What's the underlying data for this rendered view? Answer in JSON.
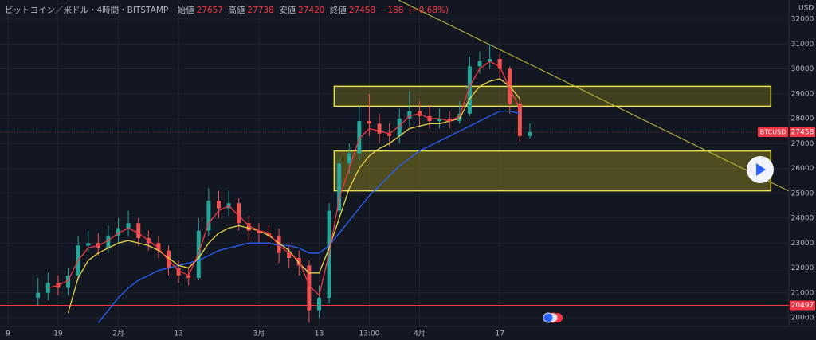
{
  "chart_data": {
    "type": "candlestick",
    "title": "ビットコイン／米ドル・4時間・BITSTAMP",
    "ohlc": {
      "open_label": "始値",
      "open": 27657,
      "high_label": "高値",
      "high": 27738,
      "low_label": "安値",
      "low": 27420,
      "close_label": "終値",
      "close": 27458,
      "change": {
        "value": -188,
        "label": "−188"
      },
      "change_pct": {
        "value": -0.68,
        "label": "(−0.68%)"
      }
    },
    "currency": "USD",
    "symbol": "BTCUSD",
    "last_price": 27458,
    "hline": 20497,
    "up_color": "#26a69a",
    "down_color": "#ef5350",
    "categories": [
      "9",
      null,
      null,
      null,
      null,
      "19",
      null,
      null,
      null,
      null,
      null,
      "2月",
      null,
      null,
      null,
      null,
      null,
      "13",
      null,
      null,
      null,
      null,
      null,
      null,
      null,
      "3月",
      null,
      null,
      null,
      null,
      null,
      "13",
      null,
      null,
      null,
      null,
      "13:00",
      null,
      null,
      null,
      null,
      "4月",
      null,
      null,
      null,
      null,
      null,
      null,
      null,
      "17",
      null,
      null,
      null
    ],
    "open": [
      null,
      null,
      null,
      20800,
      21000,
      21400,
      21200,
      21700,
      22900,
      23000,
      22800,
      23300,
      23600,
      23800,
      23200,
      23000,
      22700,
      22000,
      21700,
      21600,
      23500,
      24700,
      24400,
      24600,
      23800,
      23500,
      23400,
      23300,
      22600,
      22400,
      22100,
      20300,
      20800,
      24300,
      26200,
      26600,
      27900,
      27800,
      27400,
      27300,
      28000,
      28300,
      28100,
      27900,
      28000,
      27900,
      28200,
      30100,
      30300,
      30400,
      30000,
      28600,
      27300
    ],
    "high": [
      null,
      null,
      null,
      21600,
      21800,
      21700,
      22000,
      23300,
      23500,
      23400,
      23700,
      24000,
      24300,
      24000,
      23500,
      23300,
      22900,
      22300,
      22000,
      24000,
      25200,
      25100,
      25100,
      24800,
      24100,
      23800,
      23700,
      23600,
      22900,
      22700,
      22300,
      21300,
      24600,
      26500,
      27000,
      28500,
      29000,
      28200,
      27800,
      28400,
      29100,
      28700,
      28500,
      28400,
      28300,
      28700,
      30500,
      30700,
      31000,
      30600,
      30100,
      28800,
      27800
    ],
    "low": [
      null,
      null,
      null,
      20500,
      20700,
      20900,
      20900,
      21500,
      22600,
      22500,
      22600,
      23000,
      23300,
      22900,
      22700,
      22400,
      21700,
      21400,
      21300,
      21500,
      23300,
      24000,
      24100,
      23500,
      23100,
      23000,
      22900,
      22200,
      22000,
      21700,
      19800,
      20000,
      20600,
      24000,
      25800,
      26300,
      27300,
      27000,
      26900,
      27000,
      27700,
      27700,
      27600,
      27600,
      27600,
      27800,
      28100,
      29800,
      30000,
      29600,
      28200,
      27100,
      27200
    ],
    "close": [
      null,
      null,
      null,
      21000,
      21400,
      21200,
      21700,
      22900,
      23000,
      22800,
      23300,
      23600,
      23800,
      23200,
      23000,
      22700,
      22000,
      21700,
      21600,
      23500,
      24700,
      24400,
      24600,
      23800,
      23500,
      23400,
      23300,
      22600,
      22400,
      22100,
      20300,
      20800,
      24300,
      26200,
      26600,
      27900,
      27800,
      27400,
      27300,
      28000,
      28300,
      28100,
      27900,
      28000,
      27900,
      28200,
      30100,
      30300,
      30400,
      30000,
      28600,
      27300,
      27458
    ],
    "lines": [
      {
        "color": "#2962ff",
        "values": [
          null,
          null,
          null,
          null,
          null,
          null,
          null,
          null,
          null,
          19800,
          20300,
          20800,
          21200,
          21500,
          21700,
          21900,
          22000,
          22100,
          22200,
          22300,
          22500,
          22700,
          22800,
          22900,
          23000,
          23000,
          23000,
          22900,
          22900,
          22800,
          22600,
          22600,
          22900,
          23400,
          23900,
          24400,
          24900,
          25300,
          25700,
          26100,
          26400,
          26700,
          26900,
          27100,
          27300,
          27500,
          27700,
          27900,
          28100,
          28300,
          28300,
          28200,
          null
        ]
      },
      {
        "color": "#e8d44d",
        "values": [
          null,
          null,
          null,
          null,
          null,
          null,
          20200,
          21600,
          22300,
          22600,
          22800,
          23000,
          23100,
          23000,
          22900,
          22700,
          22400,
          22100,
          22000,
          22400,
          23000,
          23400,
          23600,
          23700,
          23600,
          23500,
          23300,
          23000,
          22700,
          22200,
          21800,
          21800,
          22800,
          24000,
          25200,
          26000,
          26500,
          26800,
          27000,
          27300,
          27600,
          27700,
          27800,
          27800,
          27900,
          28000,
          28800,
          29300,
          29500,
          29600,
          29300,
          28800,
          null
        ]
      },
      {
        "color": "#f23645",
        "values": [
          null,
          null,
          null,
          null,
          21200,
          21300,
          21500,
          22300,
          22800,
          22900,
          23100,
          23400,
          23600,
          23400,
          23100,
          22800,
          22300,
          21900,
          21700,
          22600,
          23800,
          24300,
          24500,
          24100,
          23700,
          23500,
          23400,
          22900,
          22600,
          22300,
          21300,
          20900,
          22600,
          24800,
          26000,
          27200,
          27600,
          27500,
          27400,
          27700,
          28100,
          28200,
          28000,
          28000,
          27900,
          28100,
          29300,
          30000,
          30300,
          30100,
          29200,
          28400,
          null
        ]
      }
    ],
    "zones": [
      {
        "x": [
          32.5,
          76
        ],
        "y": [
          28500,
          29300
        ],
        "fill": "rgba(120,112,30,0.45)",
        "color": "#e8e04a"
      },
      {
        "x": [
          32.5,
          76
        ],
        "y": [
          25100,
          26700
        ],
        "fill": "rgba(120,112,30,0.6)",
        "color": "#e8e04a"
      }
    ],
    "trendline": {
      "x": [
        38.9,
        77.8
      ],
      "y": [
        32770,
        25090
      ],
      "color": "#c8c040"
    },
    "xlim": [
      -0.79,
      77.8
    ],
    "ylim": [
      19648,
      32768
    ],
    "yticks": [
      20000,
      21000,
      22000,
      23000,
      24000,
      25000,
      26000,
      27000,
      28000,
      29000,
      30000,
      31000,
      32000
    ],
    "grid": true
  }
}
